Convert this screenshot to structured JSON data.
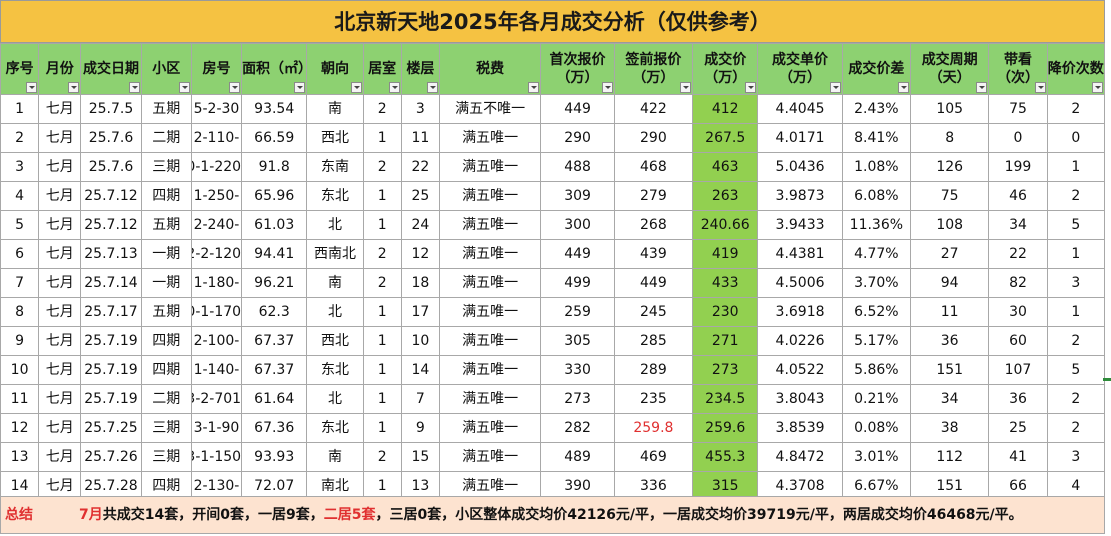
{
  "title": "北京新天地2025年各月成交分析（仅供参考）",
  "columns": [
    "序号",
    "月份",
    "成交日期",
    "小区",
    "房号",
    "面积（㎡）",
    "朝向",
    "居室",
    "楼层",
    "税费",
    "首次报价（万）",
    "签前报价（万）",
    "成交价（万）",
    "成交单价（万）",
    "成交价差",
    "成交周期（天）",
    "带看（次）",
    "降价次数"
  ],
  "rows": [
    [
      "1",
      "七月",
      "25.7.5",
      "五期",
      "5-2-30",
      "93.54",
      "南",
      "2",
      "3",
      "满五不唯一",
      "449",
      "422",
      "412",
      "4.4045",
      "2.43%",
      "105",
      "75",
      "2"
    ],
    [
      "2",
      "七月",
      "25.7.6",
      "二期",
      "-2-110",
      "66.59",
      "西北",
      "1",
      "11",
      "满五唯一",
      "290",
      "290",
      "267.5",
      "4.0171",
      "8.41%",
      "8",
      "0",
      "0"
    ],
    [
      "3",
      "七月",
      "25.7.6",
      "三期",
      "0-1-220",
      "91.8",
      "东南",
      "2",
      "22",
      "满五唯一",
      "488",
      "468",
      "463",
      "5.0436",
      "1.08%",
      "126",
      "199",
      "1"
    ],
    [
      "4",
      "七月",
      "25.7.12",
      "四期",
      "-1-250",
      "65.96",
      "东北",
      "1",
      "25",
      "满五唯一",
      "309",
      "279",
      "263",
      "3.9873",
      "6.08%",
      "75",
      "46",
      "2"
    ],
    [
      "5",
      "七月",
      "25.7.12",
      "五期",
      "-2-240",
      "61.03",
      "北",
      "1",
      "24",
      "满五唯一",
      "300",
      "268",
      "240.66",
      "3.9433",
      "11.36%",
      "108",
      "34",
      "5"
    ],
    [
      "6",
      "七月",
      "25.7.13",
      "一期",
      "2-2-120",
      "94.41",
      "西南北",
      "2",
      "12",
      "满五唯一",
      "449",
      "439",
      "419",
      "4.4381",
      "4.77%",
      "27",
      "22",
      "1"
    ],
    [
      "7",
      "七月",
      "25.7.14",
      "一期",
      "-1-180",
      "96.21",
      "南",
      "2",
      "18",
      "满五唯一",
      "499",
      "449",
      "433",
      "4.5006",
      "3.70%",
      "94",
      "82",
      "3"
    ],
    [
      "8",
      "七月",
      "25.7.17",
      "五期",
      "0-1-170",
      "62.3",
      "北",
      "1",
      "17",
      "满五唯一",
      "259",
      "245",
      "230",
      "3.6918",
      "6.52%",
      "11",
      "30",
      "1"
    ],
    [
      "9",
      "七月",
      "25.7.19",
      "四期",
      "-2-100",
      "67.37",
      "西北",
      "1",
      "10",
      "满五唯一",
      "305",
      "285",
      "271",
      "4.0226",
      "5.17%",
      "36",
      "60",
      "2"
    ],
    [
      "10",
      "七月",
      "25.7.19",
      "四期",
      "-1-140",
      "67.37",
      "东北",
      "1",
      "14",
      "满五唯一",
      "330",
      "289",
      "273",
      "4.0522",
      "5.86%",
      "151",
      "107",
      "5"
    ],
    [
      "11",
      "七月",
      "25.7.19",
      "二期",
      "3-2-701",
      "61.64",
      "北",
      "1",
      "7",
      "满五唯一",
      "273",
      "235",
      "234.5",
      "3.8043",
      "0.21%",
      "34",
      "36",
      "2"
    ],
    [
      "12",
      "七月",
      "25.7.25",
      "三期",
      "3-1-90",
      "67.36",
      "东北",
      "1",
      "9",
      "满五唯一",
      "282",
      "259.8",
      "259.6",
      "3.8539",
      "0.08%",
      "38",
      "25",
      "2"
    ],
    [
      "13",
      "七月",
      "25.7.26",
      "三期",
      "3-1-150",
      "93.93",
      "南",
      "2",
      "15",
      "满五唯一",
      "489",
      "469",
      "455.3",
      "4.8472",
      "3.01%",
      "112",
      "41",
      "3"
    ],
    [
      "14",
      "七月",
      "25.7.28",
      "四期",
      "-2-130",
      "72.07",
      "南北",
      "1",
      "13",
      "满五唯一",
      "390",
      "336",
      "315",
      "4.3708",
      "6.67%",
      "151",
      "66",
      "4"
    ]
  ],
  "summary": {
    "label": "总结",
    "month": "7月",
    "part1": "共成交14套，开间0套，一居9套，",
    "two_br": "二居5套",
    "part2": "，三居0套，小区整体成交均价42126元/平，一居成交均价39719元/平，两居成交均价46468元/平。"
  },
  "colors": {
    "title_bg": "#f5c242",
    "header_bg": "#8dd171",
    "price_bg": "#92d050",
    "summary_bg": "#fde3d0",
    "accent_red": "#e03030"
  }
}
